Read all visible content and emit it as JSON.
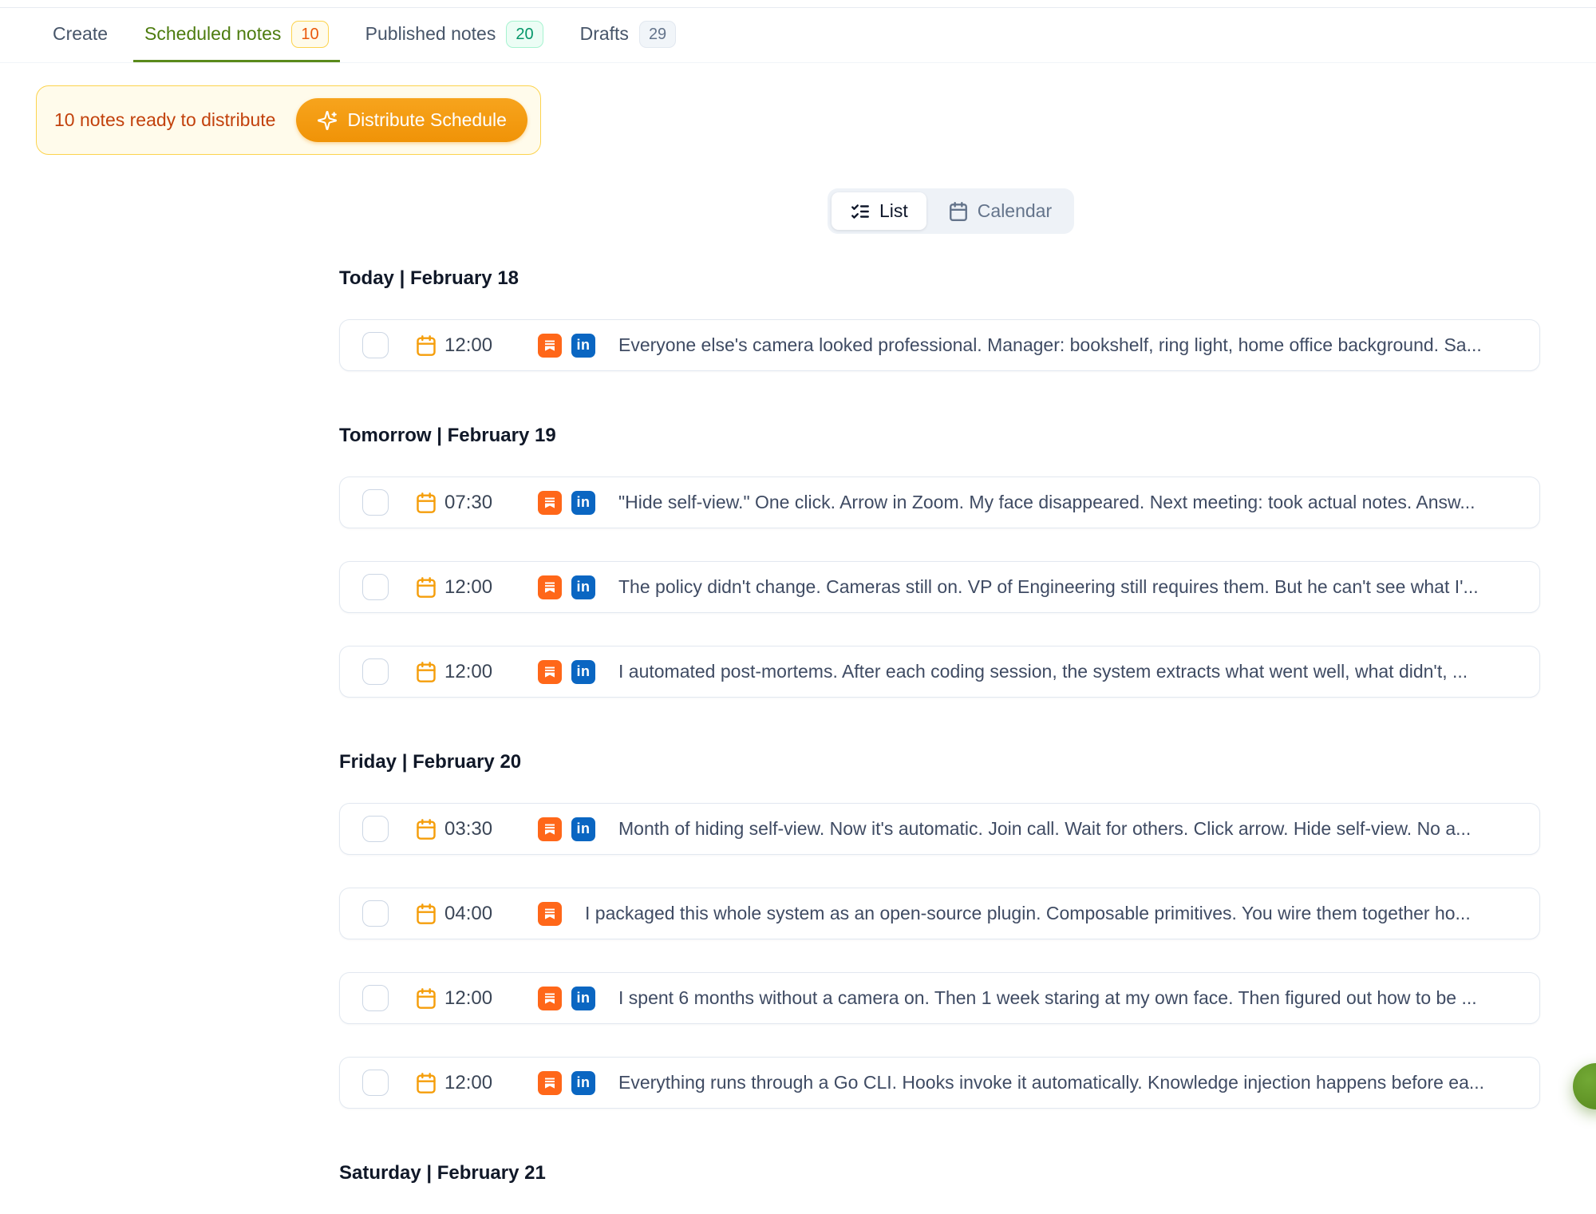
{
  "tabs": [
    {
      "label": "Create",
      "active": false
    },
    {
      "label": "Scheduled notes",
      "badge": "10",
      "badge_style": "amber",
      "active": true
    },
    {
      "label": "Published notes",
      "badge": "20",
      "badge_style": "green",
      "active": false
    },
    {
      "label": "Drafts",
      "badge": "29",
      "badge_style": "gray",
      "active": false
    }
  ],
  "banner": {
    "message": "10 notes ready to distribute",
    "button_label": "Distribute Schedule"
  },
  "view_toggle": {
    "list_label": "List",
    "calendar_label": "Calendar",
    "active": "List"
  },
  "sections": [
    {
      "heading": "Today | February 18",
      "rows": [
        {
          "time": "12:00",
          "platforms": [
            "substack",
            "linkedin"
          ],
          "text": "Everyone else's camera looked professional. Manager: bookshelf, ring light, home office background. Sa..."
        }
      ]
    },
    {
      "heading": "Tomorrow | February 19",
      "rows": [
        {
          "time": "07:30",
          "platforms": [
            "substack",
            "linkedin"
          ],
          "text": "\"Hide self-view.\" One click. Arrow in Zoom. My face disappeared. Next meeting: took actual notes. Answ..."
        },
        {
          "time": "12:00",
          "platforms": [
            "substack",
            "linkedin"
          ],
          "text": "The policy didn't change. Cameras still on. VP of Engineering still requires them. But he can't see what I'..."
        },
        {
          "time": "12:00",
          "platforms": [
            "substack",
            "linkedin"
          ],
          "text": "I automated post-mortems. After each coding session, the system extracts what went well, what didn't, ..."
        }
      ]
    },
    {
      "heading": "Friday | February 20",
      "rows": [
        {
          "time": "03:30",
          "platforms": [
            "substack",
            "linkedin"
          ],
          "text": "Month of hiding self-view. Now it's automatic. Join call. Wait for others. Click arrow. Hide self-view. No a..."
        },
        {
          "time": "04:00",
          "platforms": [
            "substack"
          ],
          "text": "I packaged this whole system as an open-source plugin. Composable primitives. You wire them together ho..."
        },
        {
          "time": "12:00",
          "platforms": [
            "substack",
            "linkedin"
          ],
          "text": "I spent 6 months without a camera on. Then 1 week staring at my own face. Then figured out how to be ..."
        },
        {
          "time": "12:00",
          "platforms": [
            "substack",
            "linkedin"
          ],
          "text": "Everything runs through a Go CLI. Hooks invoke it automatically. Knowledge injection happens before ea..."
        }
      ]
    },
    {
      "heading": "Saturday | February 21",
      "rows": []
    }
  ],
  "icons": {
    "sparkles": "sparkles-icon",
    "list": "list-checks-icon",
    "calendar": "calendar-icon",
    "substack": "substack-icon",
    "linkedin": "linkedin-icon"
  },
  "colors": {
    "active_tab": "#4d7c0f",
    "tab_underline": "#5a8a1b",
    "banner_bg": "#fffbeb",
    "banner_border": "#fcd34d",
    "banner_text": "#c2410c",
    "distribute_button": "#f09307",
    "substack_orange": "#ff6719",
    "linkedin_blue": "#0a66c2",
    "calendar_orange": "#f59e0b",
    "fab_green": "#61961f"
  }
}
